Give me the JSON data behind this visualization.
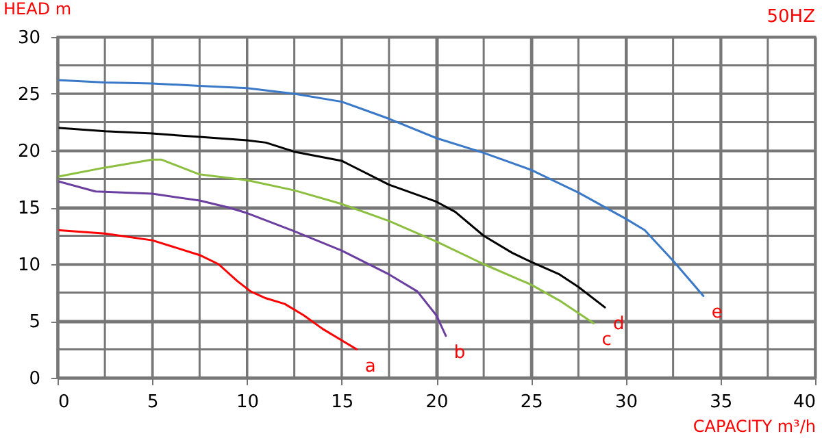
{
  "chart_data": {
    "type": "line",
    "xlabel": "CAPACITY m³/h",
    "ylabel": "HEAD m",
    "annotations": [
      "50HZ"
    ],
    "xlim": [
      0,
      40
    ],
    "ylim": [
      0,
      30
    ],
    "xticks": [
      0,
      {
        "value": 2.5,
        "label": null
      },
      5,
      {
        "value": 7.5,
        "label": null
      },
      10,
      {
        "value": 12.5,
        "label": null
      },
      15,
      {
        "value": 17.5,
        "label": null
      },
      20,
      {
        "value": 22.5,
        "label": null
      },
      25,
      {
        "value": 27.5,
        "label": null
      },
      30,
      {
        "value": 32.5,
        "label": null
      },
      35,
      {
        "value": 37.5,
        "label": null
      },
      40
    ],
    "yticks": [
      0,
      {
        "value": 2.5,
        "label": null
      },
      5,
      {
        "value": 7.5,
        "label": null
      },
      10,
      {
        "value": 12.5,
        "label": null
      },
      15,
      {
        "value": 17.5,
        "label": null
      },
      20,
      {
        "value": 22.5,
        "label": null
      },
      25,
      {
        "value": 27.5,
        "label": null
      },
      30
    ],
    "grid": true,
    "legend": false,
    "series": [
      {
        "name": "a",
        "color": "#ff0000",
        "x": [
          0,
          2.5,
          5,
          7.5,
          8.5,
          9.5,
          10.2,
          11,
          12,
          13,
          14,
          15,
          15.8
        ],
        "values": [
          13,
          12.7,
          12.1,
          10.8,
          10,
          8.5,
          7.6,
          7,
          6.5,
          5.5,
          4.3,
          3.3,
          2.5
        ]
      },
      {
        "name": "b",
        "color": "#6a3fa0",
        "x": [
          0,
          2,
          5,
          7.5,
          9,
          10,
          12.5,
          15,
          17.5,
          19,
          20,
          20.5
        ],
        "values": [
          17.3,
          16.4,
          16.2,
          15.6,
          15,
          14.5,
          12.9,
          11.2,
          9.1,
          7.6,
          5.5,
          3.7
        ]
      },
      {
        "name": "c",
        "color": "#8cbf3f",
        "x": [
          0,
          2.5,
          5,
          5.5,
          7.5,
          10,
          12.5,
          15,
          17.5,
          20,
          22.5,
          25,
          26.5,
          28.3
        ],
        "values": [
          17.7,
          18.5,
          19.2,
          19.2,
          17.9,
          17.4,
          16.5,
          15.3,
          13.8,
          12,
          10,
          8.2,
          6.8,
          4.8
        ]
      },
      {
        "name": "d",
        "color": "#000000",
        "x": [
          0,
          2.5,
          5,
          7.5,
          10,
          11,
          12.5,
          15,
          17.5,
          20,
          21,
          22.5,
          24,
          25,
          26.5,
          27.5,
          28.9
        ],
        "values": [
          22,
          21.7,
          21.5,
          21.2,
          20.9,
          20.7,
          19.9,
          19.1,
          17,
          15.5,
          14.6,
          12.5,
          11,
          10.2,
          9.1,
          8,
          6.2
        ]
      },
      {
        "name": "e",
        "color": "#3a78c8",
        "x": [
          0,
          2.5,
          5,
          7.5,
          10,
          12.5,
          15,
          17.5,
          20,
          22.5,
          25,
          27.5,
          30,
          31,
          32.5,
          34.1
        ],
        "values": [
          26.2,
          26,
          25.9,
          25.7,
          25.5,
          25,
          24.3,
          22.8,
          21.1,
          19.8,
          18.3,
          16.3,
          14,
          13,
          10.3,
          7.2
        ]
      }
    ]
  }
}
